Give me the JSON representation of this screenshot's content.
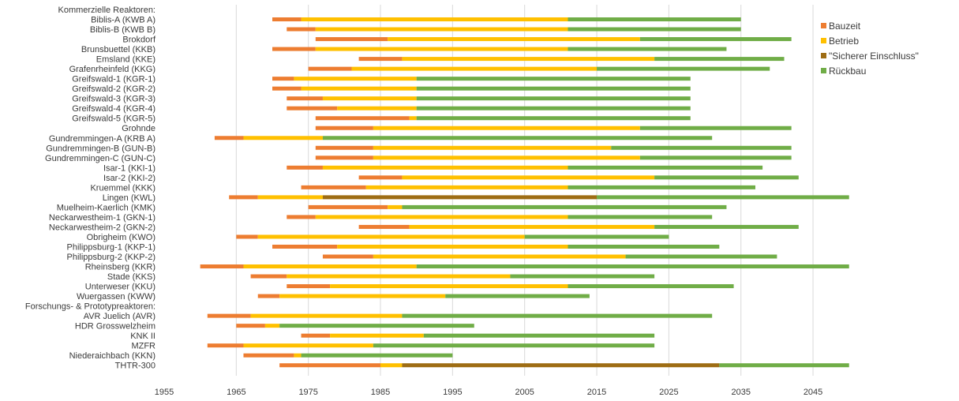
{
  "chart_data": {
    "type": "bar",
    "orientation": "horizontal",
    "stacked": true,
    "title": "",
    "xlabel": "",
    "ylabel": "",
    "xlim": [
      1955,
      2052
    ],
    "xticks": [
      1955,
      1965,
      1975,
      1985,
      1995,
      2005,
      2015,
      2025,
      2035,
      2045
    ],
    "grid": true,
    "legend_position": "top-right",
    "colors": {
      "Bauzeit": "#ed7d31",
      "Betrieb": "#ffc000",
      "Sicherer Einschluss": "#9e6d14",
      "Rückbau": "#70ad47"
    },
    "legend": [
      {
        "key": "Bauzeit",
        "label": "Bauzeit"
      },
      {
        "key": "Betrieb",
        "label": "Betrieb"
      },
      {
        "key": "Sicherer Einschluss",
        "label": "\"Sicherer Einschluss\""
      },
      {
        "key": "Rückbau",
        "label": "Rückbau"
      }
    ],
    "rows": [
      {
        "label": "Kommerzielle Reaktoren:",
        "header": true,
        "segments": []
      },
      {
        "label": "Biblis-A (KWB A)",
        "segments": [
          [
            "Bauzeit",
            1970,
            1974
          ],
          [
            "Betrieb",
            1974,
            2011
          ],
          [
            "Rückbau",
            2011,
            2035
          ]
        ]
      },
      {
        "label": "Biblis-B (KWB B)",
        "segments": [
          [
            "Bauzeit",
            1972,
            1976
          ],
          [
            "Betrieb",
            1976,
            2011
          ],
          [
            "Rückbau",
            2011,
            2035
          ]
        ]
      },
      {
        "label": "Brokdorf",
        "segments": [
          [
            "Bauzeit",
            1976,
            1986
          ],
          [
            "Betrieb",
            1986,
            2021
          ],
          [
            "Rückbau",
            2021,
            2042
          ]
        ]
      },
      {
        "label": "Brunsbuettel (KKB)",
        "segments": [
          [
            "Bauzeit",
            1970,
            1976
          ],
          [
            "Betrieb",
            1976,
            2011
          ],
          [
            "Rückbau",
            2011,
            2033
          ]
        ]
      },
      {
        "label": "Emsland (KKE)",
        "segments": [
          [
            "Bauzeit",
            1982,
            1988
          ],
          [
            "Betrieb",
            1988,
            2023
          ],
          [
            "Rückbau",
            2023,
            2041
          ]
        ]
      },
      {
        "label": "Grafenrheinfeld (KKG)",
        "segments": [
          [
            "Bauzeit",
            1975,
            1981
          ],
          [
            "Betrieb",
            1981,
            2015
          ],
          [
            "Rückbau",
            2015,
            2039
          ]
        ]
      },
      {
        "label": "Greifswald-1 (KGR-1)",
        "segments": [
          [
            "Bauzeit",
            1970,
            1973
          ],
          [
            "Betrieb",
            1973,
            1990
          ],
          [
            "Rückbau",
            1990,
            2028
          ]
        ]
      },
      {
        "label": "Greifswald-2 (KGR-2)",
        "segments": [
          [
            "Bauzeit",
            1970,
            1974
          ],
          [
            "Betrieb",
            1974,
            1990
          ],
          [
            "Rückbau",
            1990,
            2028
          ]
        ]
      },
      {
        "label": "Greifswald-3 (KGR-3)",
        "segments": [
          [
            "Bauzeit",
            1972,
            1977
          ],
          [
            "Betrieb",
            1977,
            1990
          ],
          [
            "Rückbau",
            1990,
            2028
          ]
        ]
      },
      {
        "label": "Greifswald-4 (KGR-4)",
        "segments": [
          [
            "Bauzeit",
            1972,
            1979
          ],
          [
            "Betrieb",
            1979,
            1990
          ],
          [
            "Rückbau",
            1990,
            2028
          ]
        ]
      },
      {
        "label": "Greifswald-5 (KGR-5)",
        "segments": [
          [
            "Bauzeit",
            1976,
            1989
          ],
          [
            "Betrieb",
            1989,
            1990
          ],
          [
            "Rückbau",
            1990,
            2028
          ]
        ]
      },
      {
        "label": "Grohnde",
        "segments": [
          [
            "Bauzeit",
            1976,
            1984
          ],
          [
            "Betrieb",
            1984,
            2021
          ],
          [
            "Rückbau",
            2021,
            2042
          ]
        ]
      },
      {
        "label": "Gundremmingen-A (KRB A)",
        "segments": [
          [
            "Bauzeit",
            1962,
            1966
          ],
          [
            "Betrieb",
            1966,
            1977
          ],
          [
            "Rückbau",
            1977,
            2031
          ]
        ]
      },
      {
        "label": "Gundremmingen-B (GUN-B)",
        "segments": [
          [
            "Bauzeit",
            1976,
            1984
          ],
          [
            "Betrieb",
            1984,
            2017
          ],
          [
            "Rückbau",
            2017,
            2042
          ]
        ]
      },
      {
        "label": "Gundremmingen-C (GUN-C)",
        "segments": [
          [
            "Bauzeit",
            1976,
            1984
          ],
          [
            "Betrieb",
            1984,
            2021
          ],
          [
            "Rückbau",
            2021,
            2042
          ]
        ]
      },
      {
        "label": "Isar-1 (KKI-1)",
        "segments": [
          [
            "Bauzeit",
            1972,
            1977
          ],
          [
            "Betrieb",
            1977,
            2011
          ],
          [
            "Rückbau",
            2011,
            2038
          ]
        ]
      },
      {
        "label": "Isar-2 (KKI-2)",
        "segments": [
          [
            "Bauzeit",
            1982,
            1988
          ],
          [
            "Betrieb",
            1988,
            2023
          ],
          [
            "Rückbau",
            2023,
            2043
          ]
        ]
      },
      {
        "label": "Kruemmel (KKK)",
        "segments": [
          [
            "Bauzeit",
            1974,
            1983
          ],
          [
            "Betrieb",
            1983,
            2011
          ],
          [
            "Rückbau",
            2011,
            2037
          ]
        ]
      },
      {
        "label": "Lingen (KWL)",
        "segments": [
          [
            "Bauzeit",
            1964,
            1968
          ],
          [
            "Betrieb",
            1968,
            1977
          ],
          [
            "Sicherer Einschluss",
            1977,
            2015
          ],
          [
            "Rückbau",
            2015,
            2050
          ]
        ]
      },
      {
        "label": "Muelheim-Kaerlich (KMK)",
        "segments": [
          [
            "Bauzeit",
            1975,
            1986
          ],
          [
            "Betrieb",
            1986,
            1988
          ],
          [
            "Rückbau",
            1988,
            2033
          ]
        ]
      },
      {
        "label": "Neckarwestheim-1 (GKN-1)",
        "segments": [
          [
            "Bauzeit",
            1972,
            1976
          ],
          [
            "Betrieb",
            1976,
            2011
          ],
          [
            "Rückbau",
            2011,
            2031
          ]
        ]
      },
      {
        "label": "Neckarwestheim-2 (GKN-2)",
        "segments": [
          [
            "Bauzeit",
            1982,
            1989
          ],
          [
            "Betrieb",
            1989,
            2023
          ],
          [
            "Rückbau",
            2023,
            2043
          ]
        ]
      },
      {
        "label": "Obrigheim (KWO)",
        "segments": [
          [
            "Bauzeit",
            1965,
            1968
          ],
          [
            "Betrieb",
            1968,
            2005
          ],
          [
            "Rückbau",
            2005,
            2025
          ]
        ]
      },
      {
        "label": "Philippsburg-1 (KKP-1)",
        "segments": [
          [
            "Bauzeit",
            1970,
            1979
          ],
          [
            "Betrieb",
            1979,
            2011
          ],
          [
            "Rückbau",
            2011,
            2032
          ]
        ]
      },
      {
        "label": "Philippsburg-2 (KKP-2)",
        "segments": [
          [
            "Bauzeit",
            1977,
            1984
          ],
          [
            "Betrieb",
            1984,
            2019
          ],
          [
            "Rückbau",
            2019,
            2040
          ]
        ]
      },
      {
        "label": "Rheinsberg (KKR)",
        "segments": [
          [
            "Bauzeit",
            1960,
            1966
          ],
          [
            "Betrieb",
            1966,
            1990
          ],
          [
            "Rückbau",
            1990,
            2050
          ]
        ]
      },
      {
        "label": "Stade (KKS)",
        "segments": [
          [
            "Bauzeit",
            1967,
            1972
          ],
          [
            "Betrieb",
            1972,
            2003
          ],
          [
            "Rückbau",
            2003,
            2023
          ]
        ]
      },
      {
        "label": "Unterweser (KKU)",
        "segments": [
          [
            "Bauzeit",
            1972,
            1978
          ],
          [
            "Betrieb",
            1978,
            2011
          ],
          [
            "Rückbau",
            2011,
            2034
          ]
        ]
      },
      {
        "label": "Wuergassen (KWW)",
        "segments": [
          [
            "Bauzeit",
            1968,
            1971
          ],
          [
            "Betrieb",
            1971,
            1994
          ],
          [
            "Rückbau",
            1994,
            2014
          ]
        ]
      },
      {
        "label": "Forschungs- & Prototypreaktoren:",
        "header": true,
        "segments": []
      },
      {
        "label": "AVR Juelich (AVR)",
        "segments": [
          [
            "Bauzeit",
            1961,
            1967
          ],
          [
            "Betrieb",
            1967,
            1988
          ],
          [
            "Rückbau",
            1988,
            2031
          ]
        ]
      },
      {
        "label": "HDR Grosswelzheim",
        "segments": [
          [
            "Bauzeit",
            1965,
            1969
          ],
          [
            "Betrieb",
            1969,
            1971
          ],
          [
            "Rückbau",
            1971,
            1998
          ]
        ]
      },
      {
        "label": "KNK II",
        "segments": [
          [
            "Bauzeit",
            1974,
            1978
          ],
          [
            "Betrieb",
            1978,
            1991
          ],
          [
            "Rückbau",
            1991,
            2023
          ]
        ]
      },
      {
        "label": "MZFR",
        "segments": [
          [
            "Bauzeit",
            1961,
            1966
          ],
          [
            "Betrieb",
            1966,
            1984
          ],
          [
            "Rückbau",
            1984,
            2023
          ]
        ]
      },
      {
        "label": "Niederaichbach (KKN)",
        "segments": [
          [
            "Bauzeit",
            1966,
            1973
          ],
          [
            "Betrieb",
            1973,
            1974
          ],
          [
            "Rückbau",
            1974,
            1995
          ]
        ]
      },
      {
        "label": "THTR-300",
        "segments": [
          [
            "Bauzeit",
            1971,
            1985
          ],
          [
            "Betrieb",
            1985,
            1988
          ],
          [
            "Sicherer Einschluss",
            1988,
            2032
          ],
          [
            "Rückbau",
            2032,
            2050
          ]
        ]
      }
    ]
  }
}
